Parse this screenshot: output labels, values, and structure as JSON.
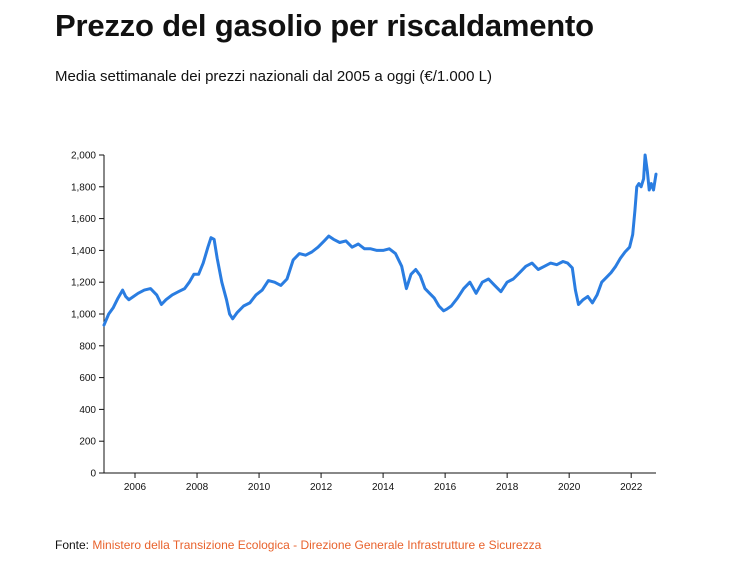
{
  "header": {
    "title": "Prezzo del gasolio per riscaldamento",
    "subtitle": "Media settimanale dei prezzi nazionali dal 2005 a oggi (€/1.000 L)"
  },
  "source": {
    "label": "Fonte:",
    "link_text": "Ministero della Transizione Ecologica - Direzione Generale Infrastrutture e Sicurezza"
  },
  "colors": {
    "line": "#2a7de1",
    "link": "#e8622c"
  },
  "chart_data": {
    "type": "line",
    "title": "Prezzo del gasolio per riscaldamento",
    "subtitle": "Media settimanale dei prezzi nazionali dal 2005 a oggi (€/1.000 L)",
    "xlabel": "",
    "ylabel": "",
    "xlim": [
      2005.0,
      2022.8
    ],
    "ylim": [
      0,
      2000
    ],
    "grid": false,
    "x_ticks": [
      2006,
      2008,
      2010,
      2012,
      2014,
      2016,
      2018,
      2020,
      2022
    ],
    "y_ticks": [
      0,
      200,
      400,
      600,
      800,
      1000,
      1200,
      1400,
      1600,
      1800,
      2000
    ],
    "y_tick_labels": [
      "0",
      "200",
      "400",
      "600",
      "800",
      "1,000",
      "1,200",
      "1,400",
      "1,600",
      "1,800",
      "2,000"
    ],
    "series": [
      {
        "x": [
          2005.0,
          2005.15,
          2005.3,
          2005.45,
          2005.6,
          2005.7,
          2005.8,
          2005.95,
          2006.1,
          2006.3,
          2006.5,
          2006.7,
          2006.85,
          2007.0,
          2007.2,
          2007.4,
          2007.6,
          2007.75,
          2007.9,
          2008.05,
          2008.2,
          2008.35,
          2008.45,
          2008.55,
          2008.65,
          2008.8,
          2008.95,
          2009.05,
          2009.15,
          2009.3,
          2009.5,
          2009.7,
          2009.9,
          2010.1,
          2010.3,
          2010.5,
          2010.7,
          2010.9,
          2011.1,
          2011.3,
          2011.5,
          2011.7,
          2011.9,
          2012.1,
          2012.25,
          2012.4,
          2012.6,
          2012.8,
          2013.0,
          2013.2,
          2013.4,
          2013.6,
          2013.8,
          2014.0,
          2014.2,
          2014.4,
          2014.6,
          2014.75,
          2014.9,
          2015.05,
          2015.2,
          2015.35,
          2015.5,
          2015.65,
          2015.8,
          2015.95,
          2016.05,
          2016.2,
          2016.4,
          2016.6,
          2016.8,
          2017.0,
          2017.2,
          2017.4,
          2017.6,
          2017.8,
          2018.0,
          2018.2,
          2018.4,
          2018.6,
          2018.8,
          2019.0,
          2019.2,
          2019.4,
          2019.6,
          2019.8,
          2019.95,
          2020.1,
          2020.2,
          2020.3,
          2020.45,
          2020.6,
          2020.75,
          2020.9,
          2021.05,
          2021.2,
          2021.35,
          2021.5,
          2021.65,
          2021.8,
          2021.95,
          2022.05,
          2022.12,
          2022.18,
          2022.25,
          2022.32,
          2022.4,
          2022.45,
          2022.52,
          2022.58,
          2022.65,
          2022.72,
          2022.8
        ],
        "y": [
          930,
          1000,
          1040,
          1100,
          1150,
          1110,
          1090,
          1110,
          1130,
          1150,
          1160,
          1120,
          1060,
          1090,
          1120,
          1140,
          1160,
          1200,
          1250,
          1250,
          1320,
          1420,
          1480,
          1470,
          1350,
          1200,
          1090,
          1000,
          970,
          1010,
          1050,
          1070,
          1120,
          1150,
          1210,
          1200,
          1180,
          1220,
          1340,
          1380,
          1370,
          1390,
          1420,
          1460,
          1490,
          1470,
          1450,
          1460,
          1420,
          1440,
          1410,
          1410,
          1400,
          1400,
          1410,
          1380,
          1300,
          1160,
          1250,
          1280,
          1240,
          1160,
          1130,
          1100,
          1050,
          1020,
          1030,
          1050,
          1100,
          1160,
          1200,
          1130,
          1200,
          1220,
          1180,
          1140,
          1200,
          1220,
          1260,
          1300,
          1320,
          1280,
          1300,
          1320,
          1310,
          1330,
          1320,
          1290,
          1150,
          1060,
          1090,
          1110,
          1070,
          1120,
          1200,
          1230,
          1260,
          1300,
          1350,
          1390,
          1420,
          1500,
          1650,
          1800,
          1820,
          1800,
          1850,
          2000,
          1900,
          1780,
          1820,
          1780,
          1880
        ]
      }
    ]
  }
}
